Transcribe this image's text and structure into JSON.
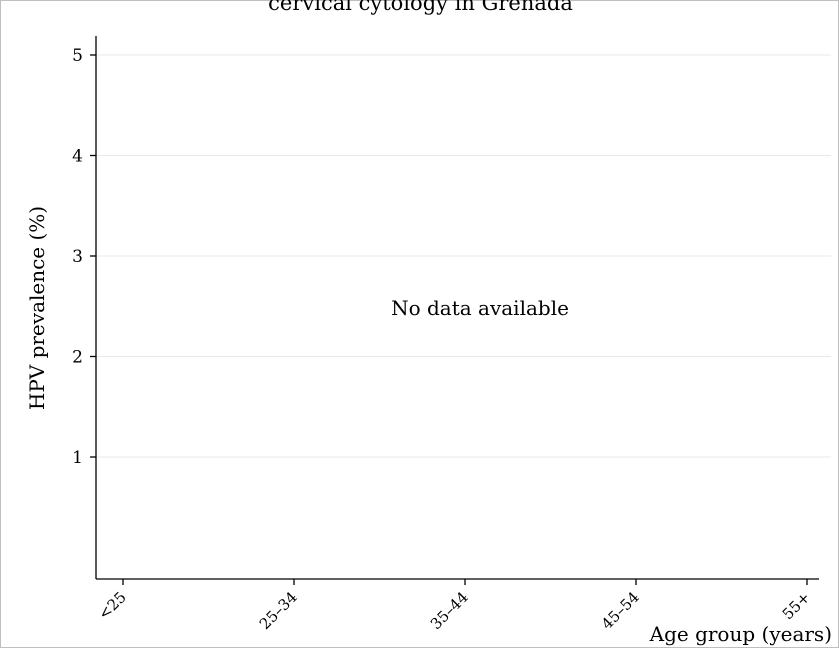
{
  "chart_data": {
    "type": "bar",
    "title": "cervical cytology in Grenada",
    "xlabel": "Age group (years)",
    "ylabel": "HPV prevalence (%)",
    "categories": [
      "<25",
      "25–34",
      "35–44",
      "45–54",
      "55+"
    ],
    "series": [],
    "yticks": [
      1,
      2,
      3,
      4,
      5
    ],
    "ylim": [
      0,
      5.2
    ],
    "grid": true,
    "annotation": "No data available",
    "colors": {
      "grid": "#e8e8e8",
      "axis": "#000000",
      "frame": "#bfbfbf"
    }
  }
}
